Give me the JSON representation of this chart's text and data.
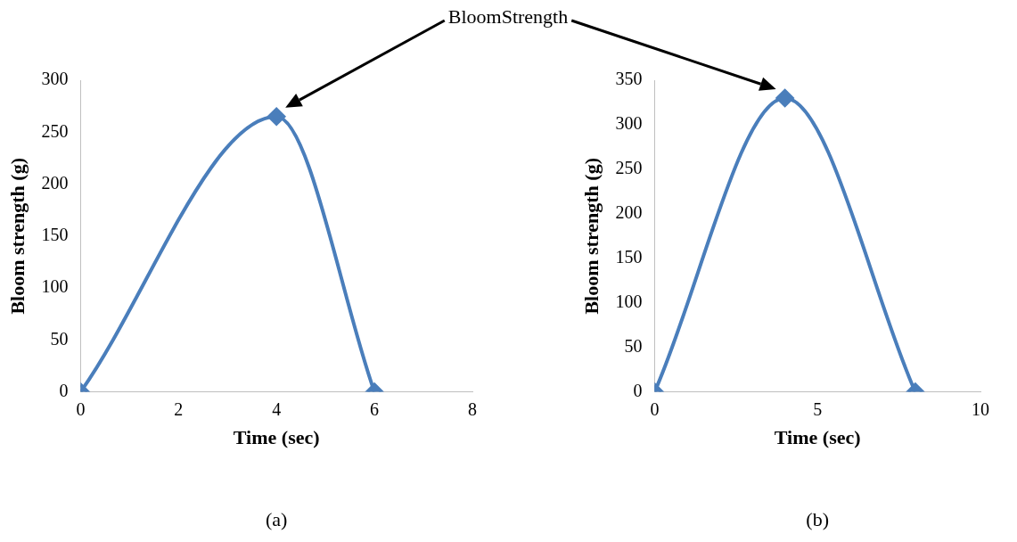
{
  "chart_data": [
    {
      "type": "line",
      "xlabel": "Time (sec)",
      "ylabel": "Bloom strength (g)",
      "x": [
        0,
        4,
        6
      ],
      "xlim": [
        0,
        8
      ],
      "xticks": [
        0,
        2,
        4,
        6,
        8
      ],
      "ylim": [
        0,
        300
      ],
      "yticks": [
        0,
        50,
        100,
        150,
        200,
        250,
        300
      ],
      "marker": "diamond",
      "series": [
        {
          "color": "#4a7ebb",
          "values": [
            0,
            265,
            0
          ]
        }
      ],
      "annotations": [
        "BloomStrength",
        "(a)"
      ]
    },
    {
      "type": "line",
      "xlabel": "Time (sec)",
      "ylabel": "Bloom strength (g)",
      "x": [
        0,
        4,
        8
      ],
      "xlim": [
        0,
        10
      ],
      "xticks": [
        0,
        5,
        10
      ],
      "ylim": [
        0,
        350
      ],
      "yticks": [
        0,
        50,
        100,
        150,
        200,
        250,
        300,
        350
      ],
      "marker": "diamond",
      "series": [
        {
          "color": "#4a7ebb",
          "values": [
            0,
            330,
            0
          ]
        }
      ],
      "annotations": [
        "(b)"
      ]
    }
  ]
}
